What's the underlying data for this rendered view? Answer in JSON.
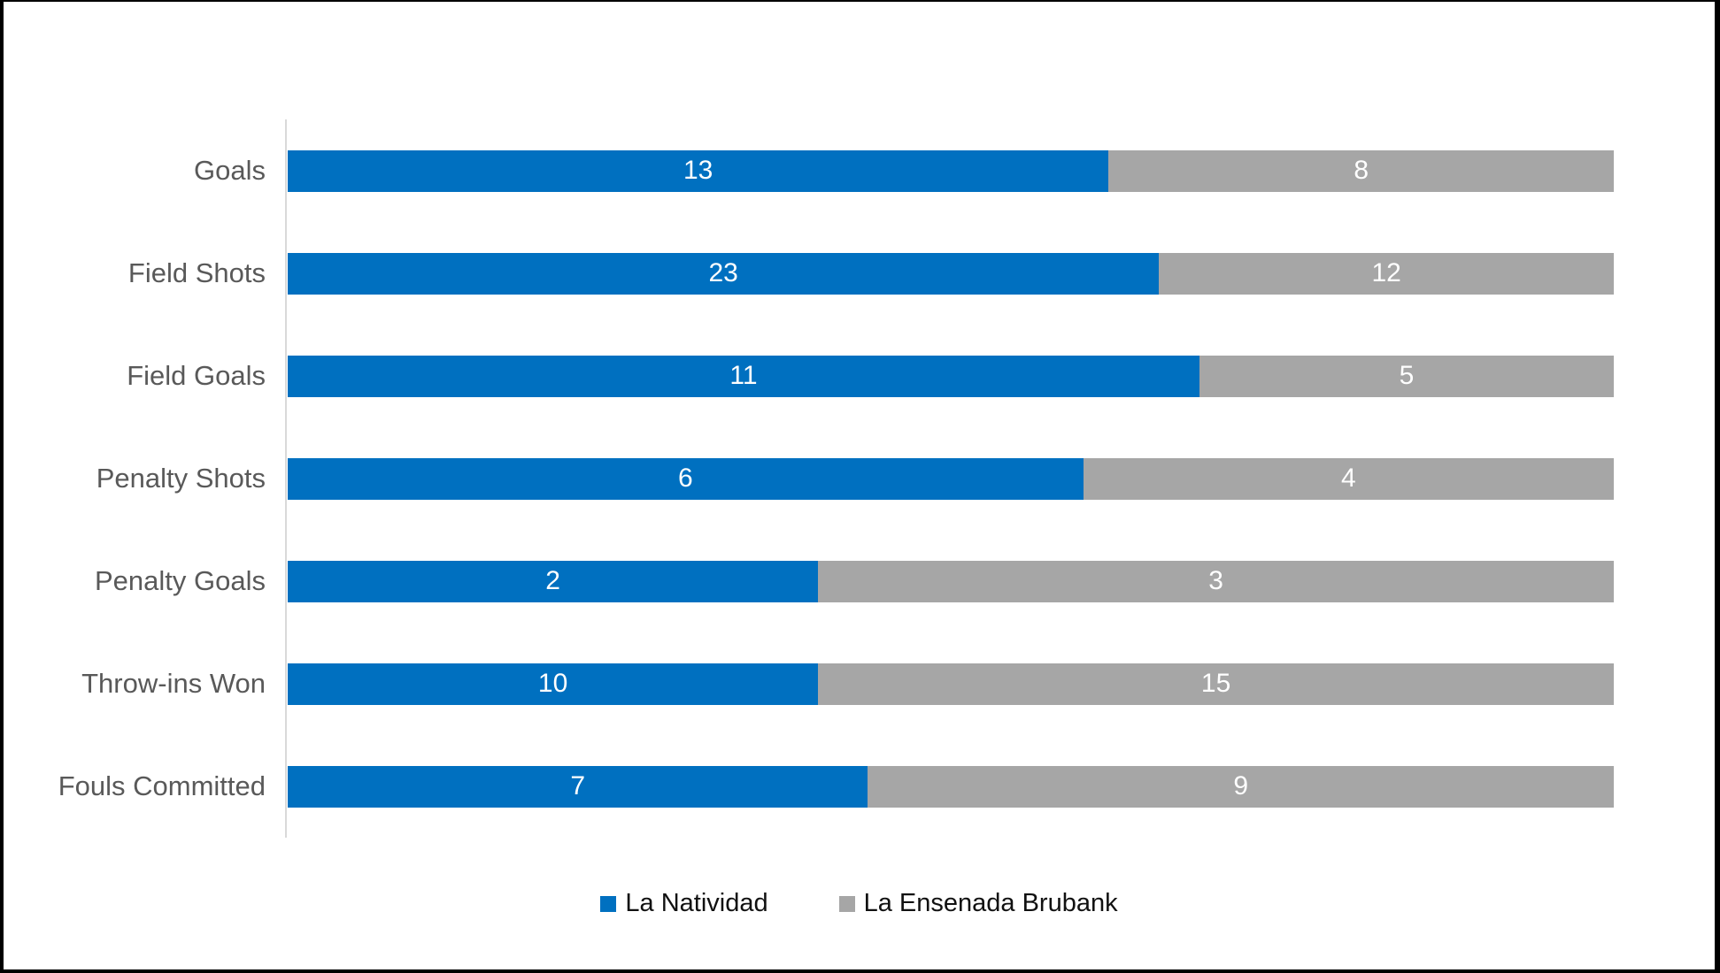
{
  "chart_data": {
    "type": "bar",
    "variant": "horizontal-100pct-stacked",
    "title": "",
    "xlabel": "",
    "ylabel": "",
    "grid": false,
    "legend_position": "bottom",
    "data_labels": "inside-center",
    "categories": [
      "Goals",
      "Field Shots",
      "Field Goals",
      "Penalty Shots",
      "Penalty Goals",
      "Throw-ins Won",
      "Fouls Committed"
    ],
    "series": [
      {
        "name": "La Natividad",
        "color": "#0070C0",
        "values": [
          13,
          23,
          11,
          6,
          2,
          10,
          7
        ]
      },
      {
        "name": "La Ensenada Brubank",
        "color": "#A6A6A6",
        "values": [
          8,
          12,
          5,
          4,
          3,
          15,
          9
        ]
      }
    ],
    "colors": {
      "axis_line": "#D9D9D9",
      "category_label": "#595959",
      "data_label": "#FFFFFF",
      "legend_text": "#111111",
      "background": "#FFFFFF",
      "frame_border": "#000000"
    }
  }
}
